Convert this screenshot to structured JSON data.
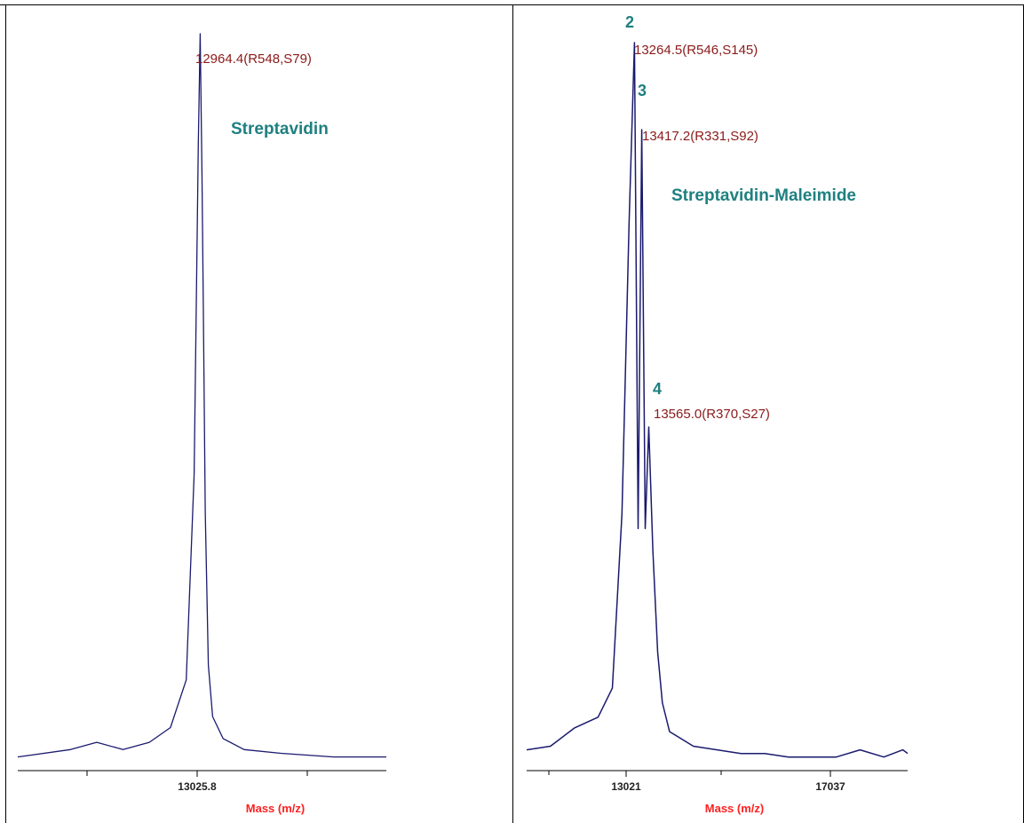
{
  "colors": {
    "spectrum": "#1a1a6e",
    "peak_label": "#8b1a1a",
    "sample_label": "#1f8080",
    "axis_title": "#ff2020"
  },
  "chart_data": [
    {
      "type": "line",
      "title": "Streptavidin",
      "xlabel": "Mass (m/z)",
      "ylabel": "",
      "x_ticks": [
        "13025.8"
      ],
      "xlim": [
        9500,
        16500
      ],
      "ylim": [
        0,
        100
      ],
      "peaks": [
        {
          "label": "12964.4(R548,S79)",
          "mass": 12964.4,
          "intensity": 100
        }
      ],
      "series": [
        {
          "x": [
            9500,
            10500,
            11000,
            11500,
            12000,
            12400,
            12700,
            12850,
            12930,
            12964.4,
            13000,
            13025.8,
            13060,
            13120,
            13200,
            13400,
            13800,
            14500,
            15500,
            16500
          ],
          "y": [
            1.5,
            2.5,
            3.5,
            2.5,
            3.5,
            5.5,
            12,
            40,
            85,
            100,
            80,
            62,
            35,
            14,
            7,
            4,
            2.5,
            2,
            1.5,
            1.5
          ]
        }
      ]
    },
    {
      "type": "line",
      "title": "Streptavidin-Maleimide",
      "xlabel": "Mass (m/z)",
      "ylabel": "",
      "x_ticks": [
        "13021",
        "17037"
      ],
      "xlim": [
        11000,
        19000
      ],
      "ylim": [
        0,
        100
      ],
      "peaks": [
        {
          "number": "2",
          "label": "13264.5(R546,S145)",
          "mass": 13264.5,
          "intensity": 100
        },
        {
          "number": "3",
          "label": "13417.2(R331,S92)",
          "mass": 13417.2,
          "intensity": 88
        },
        {
          "number": "4",
          "label": "13565.0(R370,S27)",
          "mass": 13565.0,
          "intensity": 47
        }
      ],
      "series": [
        {
          "x": [
            11000,
            11500,
            12000,
            12500,
            12800,
            13000,
            13150,
            13264.5,
            13340,
            13417.2,
            13490,
            13565.0,
            13650,
            13750,
            13850,
            14000,
            14500,
            15000,
            15500,
            16000,
            16500,
            17000,
            17500,
            18000,
            18500,
            18900,
            19000
          ],
          "y": [
            2.5,
            3,
            5.5,
            7,
            11,
            35,
            75,
            100,
            33,
            88,
            33,
            47,
            30,
            16,
            9,
            5,
            3,
            2.5,
            2,
            2,
            1.5,
            1.5,
            1.5,
            2.5,
            1.5,
            2.5,
            2
          ]
        }
      ]
    }
  ]
}
